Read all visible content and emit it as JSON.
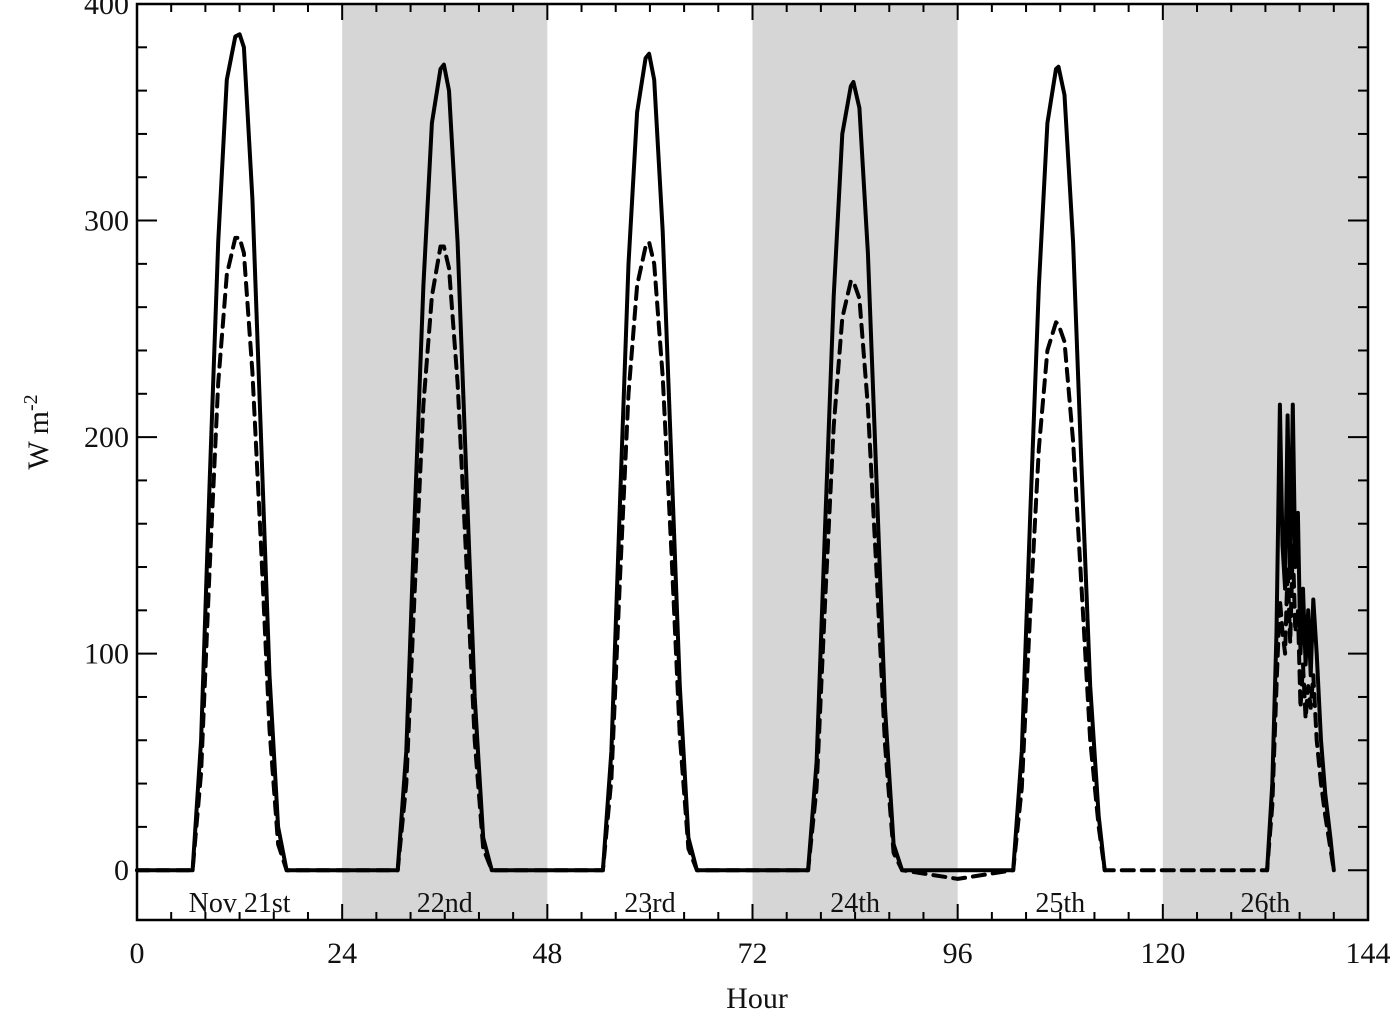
{
  "chart_data": {
    "type": "line",
    "title": "",
    "xlabel": "Hour",
    "ylabel_main": "W m",
    "ylabel_exp": "-2",
    "xlim": [
      0,
      144
    ],
    "ylim": [
      -23,
      400
    ],
    "x_ticks": [
      0,
      24,
      48,
      72,
      96,
      120,
      144
    ],
    "x_tick_labels": [
      "0",
      "24",
      "48",
      "72",
      "96",
      "120",
      "144"
    ],
    "y_ticks": [
      0,
      100,
      200,
      300,
      400
    ],
    "y_tick_labels": [
      "0",
      "100",
      "200",
      "300",
      "400"
    ],
    "shaded_bands": [
      [
        24,
        48
      ],
      [
        72,
        96
      ],
      [
        120,
        144
      ]
    ],
    "shade_color": "#d6d6d6",
    "day_labels": [
      {
        "x": 12,
        "text": "Nov 21st"
      },
      {
        "x": 36,
        "text": "22nd"
      },
      {
        "x": 60,
        "text": "23rd"
      },
      {
        "x": 84,
        "text": "24th"
      },
      {
        "x": 108,
        "text": "25th"
      },
      {
        "x": 132,
        "text": "26th"
      }
    ],
    "legend": "none",
    "grid": false,
    "series": [
      {
        "style": "solid",
        "color": "#000000",
        "x": [
          0,
          6.5,
          7.5,
          8.5,
          9.5,
          10.5,
          11.5,
          12.0,
          12.5,
          13.5,
          14.5,
          15.5,
          16.5,
          17.5,
          24,
          30.5,
          31.5,
          32.5,
          33.5,
          34.5,
          35.5,
          35.9,
          36.5,
          37.5,
          38.5,
          39.5,
          40.5,
          41.5,
          48,
          54.5,
          55.5,
          56.5,
          57.5,
          58.5,
          59.5,
          59.9,
          60.5,
          61.5,
          62.5,
          63.5,
          64.5,
          65.5,
          72,
          78.5,
          79.5,
          80.5,
          81.5,
          82.5,
          83.5,
          83.8,
          84.5,
          85.5,
          86.5,
          87.5,
          88.5,
          89.5,
          96,
          102.5,
          103.5,
          104.5,
          105.5,
          106.5,
          107.5,
          107.8,
          108.5,
          109.5,
          110.5,
          111.5,
          112.5,
          113.2
        ],
        "y": [
          0,
          0,
          60,
          180,
          290,
          365,
          385,
          386,
          380,
          310,
          200,
          90,
          20,
          0,
          0,
          0,
          55,
          165,
          270,
          345,
          370,
          372,
          360,
          290,
          185,
          80,
          15,
          0,
          0,
          0,
          55,
          170,
          280,
          350,
          375,
          377,
          365,
          295,
          190,
          85,
          15,
          0,
          0,
          0,
          50,
          160,
          265,
          340,
          362,
          364,
          352,
          285,
          180,
          75,
          12,
          0,
          0,
          0,
          55,
          165,
          270,
          345,
          370,
          371,
          358,
          290,
          185,
          85,
          25,
          0
        ]
      },
      {
        "style": "solid",
        "color": "#000000",
        "x": [
          132.2,
          132.8,
          133.3,
          133.7,
          134.0,
          134.3,
          134.6,
          134.9,
          135.2,
          135.5,
          135.8,
          136.1,
          136.4,
          136.7,
          137.0,
          137.3,
          137.6,
          138.0,
          138.5,
          139.0,
          139.6,
          140.0
        ],
        "y": [
          0,
          40,
          110,
          215,
          150,
          130,
          210,
          135,
          215,
          140,
          165,
          100,
          130,
          95,
          120,
          90,
          125,
          100,
          60,
          35,
          15,
          0
        ]
      },
      {
        "style": "dashed",
        "color": "#000000",
        "x": [
          0,
          6.5,
          7.5,
          8.5,
          9.5,
          10.5,
          11.5,
          12.0,
          12.5,
          13.5,
          14.5,
          15.5,
          16.5,
          17.5,
          24,
          30.5,
          31.5,
          32.5,
          33.5,
          34.5,
          35.5,
          35.9,
          36.5,
          37.5,
          38.5,
          39.5,
          40.5,
          41.5,
          48,
          54.5,
          55.5,
          56.5,
          57.5,
          58.5,
          59.5,
          59.9,
          60.5,
          61.5,
          62.5,
          63.5,
          64.5,
          65.5,
          72,
          78.5,
          79.5,
          80.5,
          81.5,
          82.5,
          83.5,
          83.8,
          84.5,
          85.5,
          86.5,
          87.5,
          88.5,
          89.5,
          96,
          102.5,
          103.5,
          104.5,
          105.5,
          106.5,
          107.5,
          107.8,
          108.5,
          109.5,
          110.5,
          111.5,
          112.5,
          113.2,
          120,
          132.2,
          132.8,
          133.3,
          133.7,
          134.0,
          134.3,
          134.6,
          134.9,
          135.2,
          135.5,
          135.8,
          136.1,
          136.4,
          136.7,
          137.0,
          137.3,
          137.6,
          138.0,
          138.5,
          139.0,
          139.6,
          140.0
        ],
        "y": [
          0,
          0,
          45,
          140,
          225,
          275,
          292,
          292,
          285,
          230,
          150,
          65,
          12,
          0,
          0,
          0,
          40,
          130,
          215,
          265,
          288,
          288,
          278,
          225,
          145,
          60,
          10,
          0,
          0,
          0,
          42,
          135,
          220,
          270,
          288,
          290,
          280,
          228,
          148,
          62,
          10,
          0,
          0,
          0,
          38,
          125,
          205,
          255,
          272,
          272,
          264,
          214,
          138,
          58,
          8,
          0,
          -4,
          0,
          38,
          120,
          195,
          240,
          253,
          252,
          244,
          198,
          130,
          60,
          20,
          0,
          0,
          0,
          30,
          85,
          125,
          110,
          100,
          140,
          105,
          150,
          110,
          120,
          75,
          95,
          70,
          85,
          75,
          90,
          60,
          40,
          25,
          10,
          0
        ]
      }
    ]
  }
}
